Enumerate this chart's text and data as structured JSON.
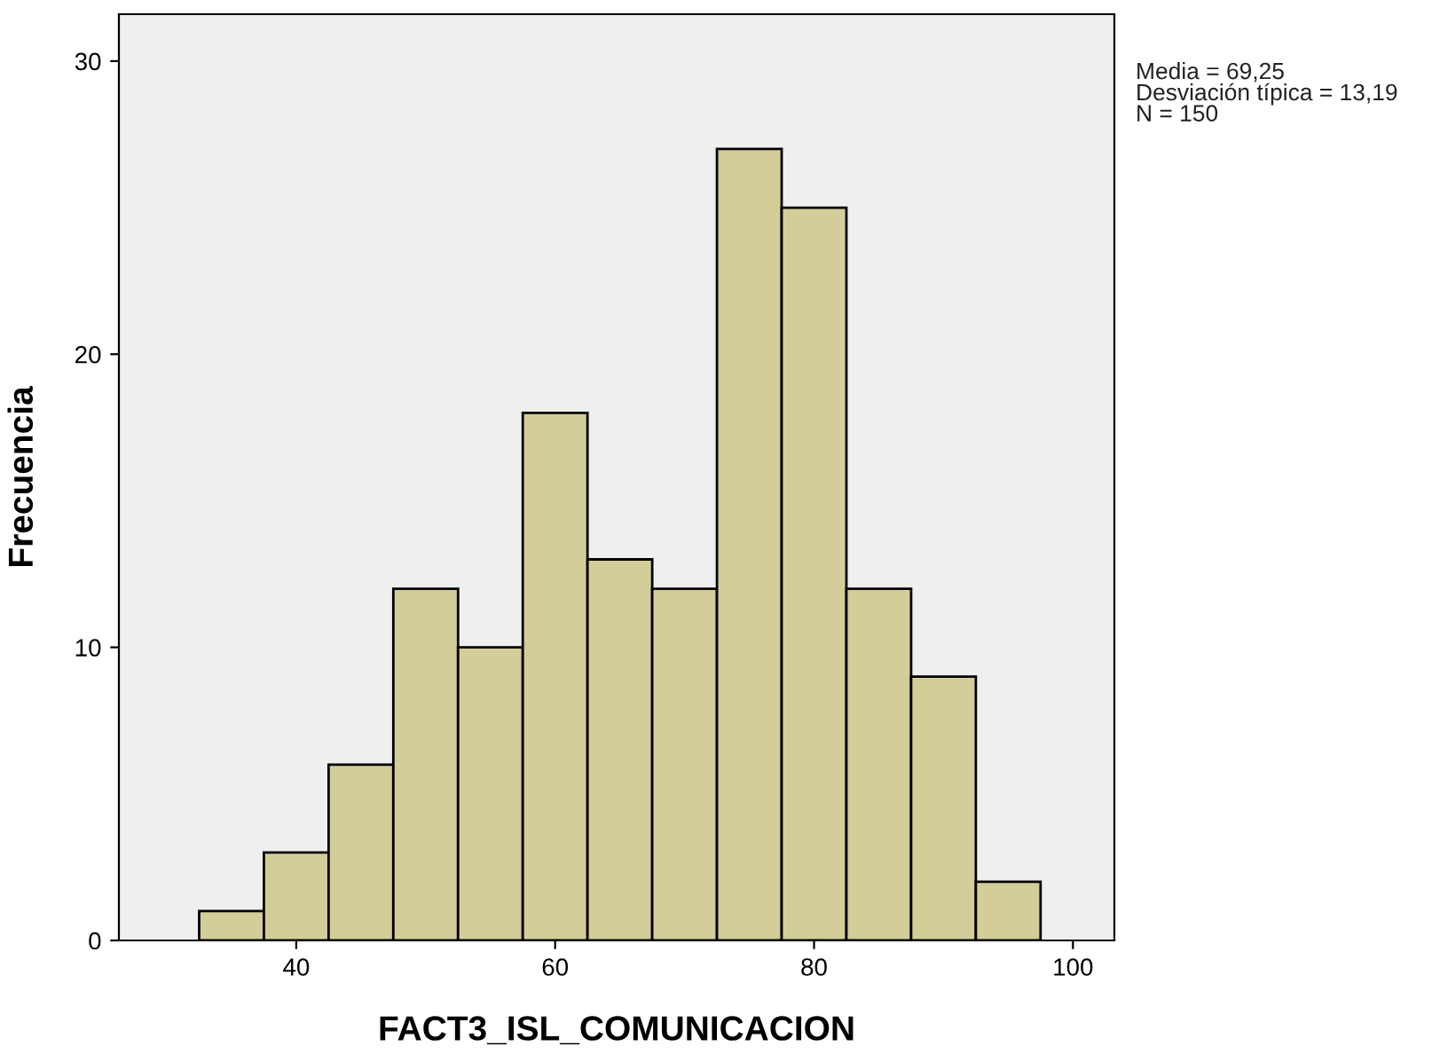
{
  "chart_data": {
    "type": "histogram",
    "xlabel": "FACT3_ISL_COMUNICACION",
    "ylabel": "Frecuencia",
    "bins": [
      32.5,
      37.5,
      42.5,
      47.5,
      52.5,
      57.5,
      62.5,
      67.5,
      72.5,
      77.5,
      82.5,
      87.5,
      92.5,
      97.5
    ],
    "values": [
      1,
      3,
      6,
      12,
      10,
      18,
      13,
      12,
      27,
      25,
      12,
      9,
      2
    ],
    "color": "#d3cd99",
    "xlim": [
      26.3,
      103.2
    ],
    "ylim": [
      0,
      31.6
    ],
    "xticks": [
      40,
      60,
      80,
      100
    ],
    "yticks": [
      0,
      10,
      20,
      30
    ],
    "grid": false,
    "annotations": [
      "Media = 69,25\nDesviación típica = 13,19\nN = 150"
    ]
  }
}
